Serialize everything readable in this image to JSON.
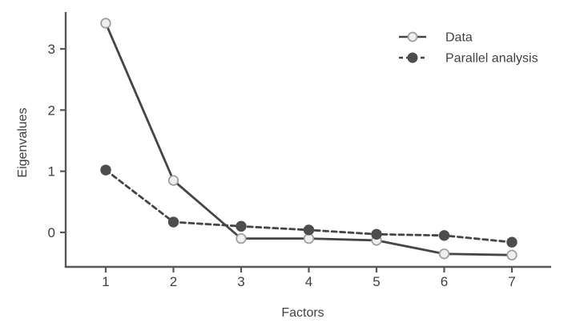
{
  "figure": {
    "background": "#ffffff"
  },
  "chart_data": {
    "type": "line",
    "title": "",
    "xlabel": "Factors",
    "ylabel": "Eigenvalues",
    "x": [
      1,
      2,
      3,
      4,
      5,
      6,
      7
    ],
    "x_tick_labels": [
      "1",
      "2",
      "3",
      "4",
      "5",
      "6",
      "7"
    ],
    "yticks": [
      0,
      1,
      2,
      3
    ],
    "y_tick_labels": [
      "0",
      "1",
      "2",
      "3"
    ],
    "ylim": [
      -0.56,
      3.6
    ],
    "xlim": [
      0.4,
      7.6
    ],
    "grid": false,
    "legend_position": "top-right",
    "series": [
      {
        "name": "Data",
        "line_style": "solid",
        "marker": "open-circle",
        "values": [
          3.42,
          0.85,
          -0.1,
          -0.1,
          -0.13,
          -0.35,
          -0.37
        ]
      },
      {
        "name": "Parallel analysis",
        "line_style": "dashed",
        "marker": "filled-circle",
        "values": [
          1.02,
          0.17,
          0.1,
          0.04,
          -0.03,
          -0.05,
          -0.16
        ]
      }
    ],
    "colors": {
      "line": "#454548",
      "open_marker_fill": "#efefef",
      "open_marker_stroke": "#9d9da0",
      "filled_marker": "#4d4d50",
      "axis": "#58585b",
      "text": "#3f3f41"
    }
  }
}
